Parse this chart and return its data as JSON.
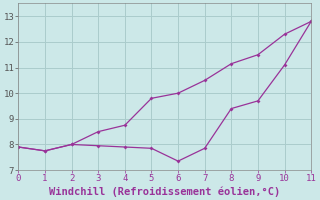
{
  "line1_x": [
    0,
    1,
    2,
    3,
    4,
    5,
    6,
    7,
    8,
    9,
    10,
    11
  ],
  "line1_y": [
    7.9,
    7.75,
    8.0,
    8.5,
    8.75,
    9.8,
    10.0,
    10.5,
    11.15,
    11.5,
    12.3,
    12.8
  ],
  "line2_x": [
    0,
    1,
    2,
    3,
    4,
    5,
    6,
    7,
    8,
    9,
    10,
    11
  ],
  "line2_y": [
    7.9,
    7.75,
    8.0,
    7.95,
    7.9,
    7.85,
    7.35,
    7.85,
    9.4,
    9.7,
    11.1,
    12.8
  ],
  "line_color": "#993399",
  "background_color": "#cce8e8",
  "grid_color": "#aacccc",
  "xlabel": "Windchill (Refroidissement éolien,°C)",
  "xlabel_color": "#993399",
  "xlim": [
    0,
    11
  ],
  "ylim": [
    7.0,
    13.5
  ],
  "yticks": [
    7,
    8,
    9,
    10,
    11,
    12,
    13
  ],
  "xticks": [
    0,
    1,
    2,
    3,
    4,
    5,
    6,
    7,
    8,
    9,
    10,
    11
  ],
  "tick_fontsize": 6.5,
  "xlabel_fontsize": 7.5
}
